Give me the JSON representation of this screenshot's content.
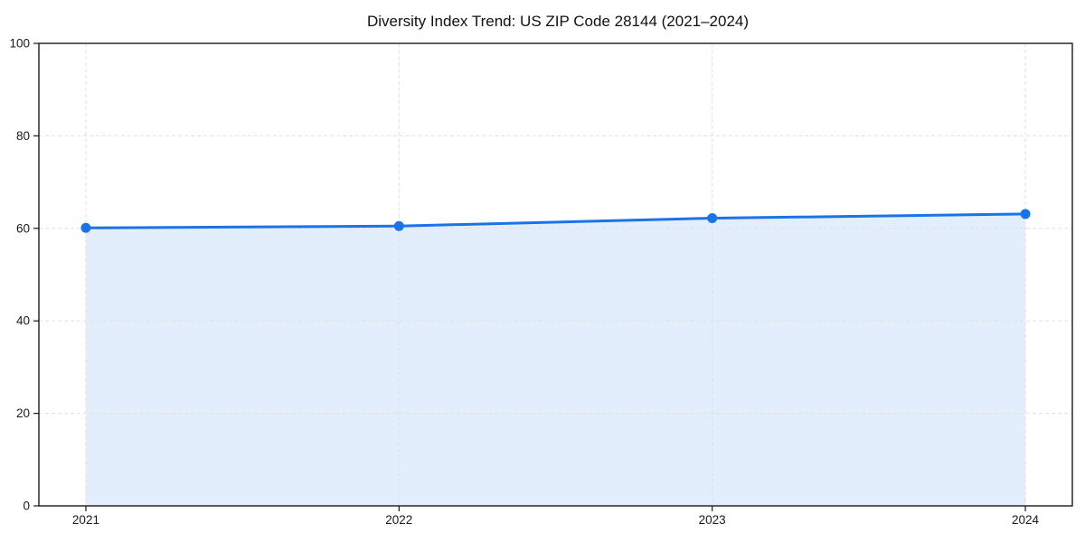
{
  "chart_data": {
    "type": "area",
    "title": "Diversity Index Trend: US ZIP Code 28144 (2021–2024)",
    "series_name": "Diversity Index",
    "x": [
      2021,
      2022,
      2023,
      2024
    ],
    "values": [
      60.1,
      60.5,
      62.2,
      63.1
    ],
    "xlabel": "",
    "ylabel": "",
    "xlim": [
      2020.85,
      2024.15
    ],
    "ylim": [
      0,
      100
    ],
    "xticks": [
      2021,
      2022,
      2023,
      2024
    ],
    "yticks": [
      0,
      20,
      40,
      60,
      80,
      100
    ],
    "grid": true,
    "grid_style": "dashed",
    "legend": false,
    "marker": "circle",
    "colors": {
      "line": "#1a73e8",
      "marker": "#1a73e8",
      "fill": "rgba(26,115,232,0.12)",
      "grid": "#e0e0e0",
      "axis": "#1a1a1a",
      "tick_label": "#1a1a1a",
      "title": "#111111",
      "background": "#ffffff"
    }
  }
}
